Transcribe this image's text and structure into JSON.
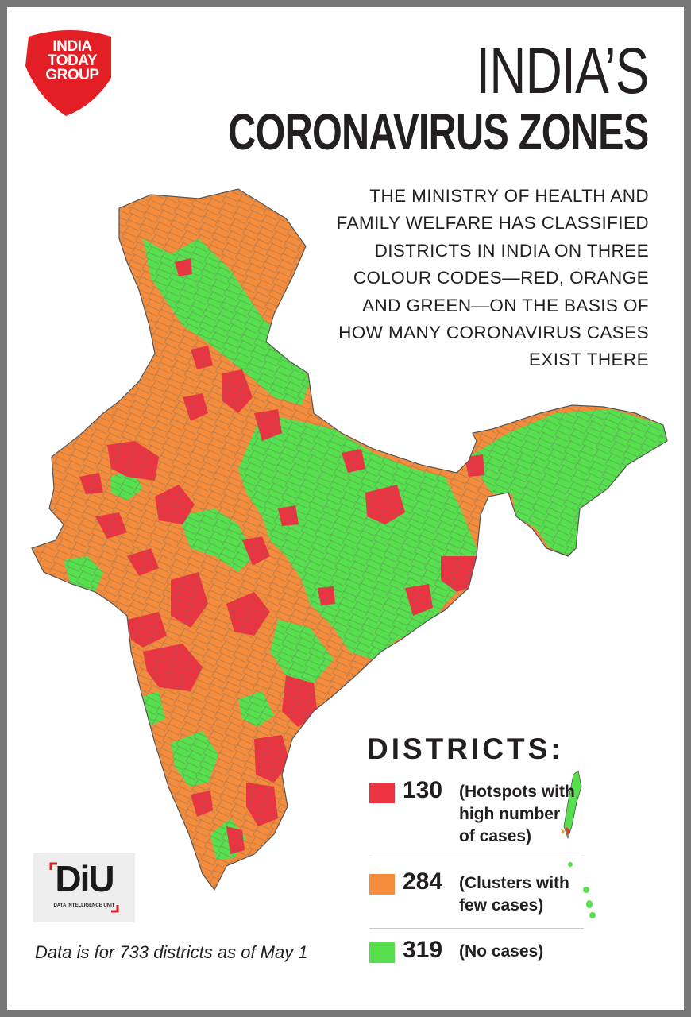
{
  "brand": {
    "name": "INDIA TODAY GROUP",
    "lines": [
      "INDIA",
      "TODAY",
      "GROUP"
    ],
    "color": "#e31e24"
  },
  "title": {
    "line1": "INDIA’S",
    "line2": "CORONAVIRUS ZONES"
  },
  "description": [
    "THE MINISTRY OF HEALTH AND",
    "FAMILY WELFARE HAS CLASSIFIED",
    "DISTRICTS IN INDIA ON THREE",
    "COLOUR CODES—RED, ORANGE",
    "AND GREEN—ON THE BASIS OF",
    "HOW MANY CORONAVIRUS CASES",
    "EXIST THERE"
  ],
  "legend": {
    "title": "DISTRICTS:",
    "items": [
      {
        "color": "#ee3340",
        "count": "130",
        "label_lines": [
          "(Hotspots with",
          "high number",
          "of cases)"
        ]
      },
      {
        "color": "#f48c3c",
        "count": "284",
        "label_lines": [
          "(Clusters with",
          "few cases)"
        ]
      },
      {
        "color": "#56e04e",
        "count": "319",
        "label_lines": [
          "(No cases)"
        ]
      }
    ]
  },
  "diu_logo": {
    "text": "DiU",
    "subtitle": "DATA INTELLIGENCE UNIT"
  },
  "footnote": "Data is for 733 districts as of May 1",
  "map_colors": {
    "red": "#ee3340",
    "orange": "#f48c3c",
    "green": "#56e04e",
    "border": "#6a6a6a"
  }
}
